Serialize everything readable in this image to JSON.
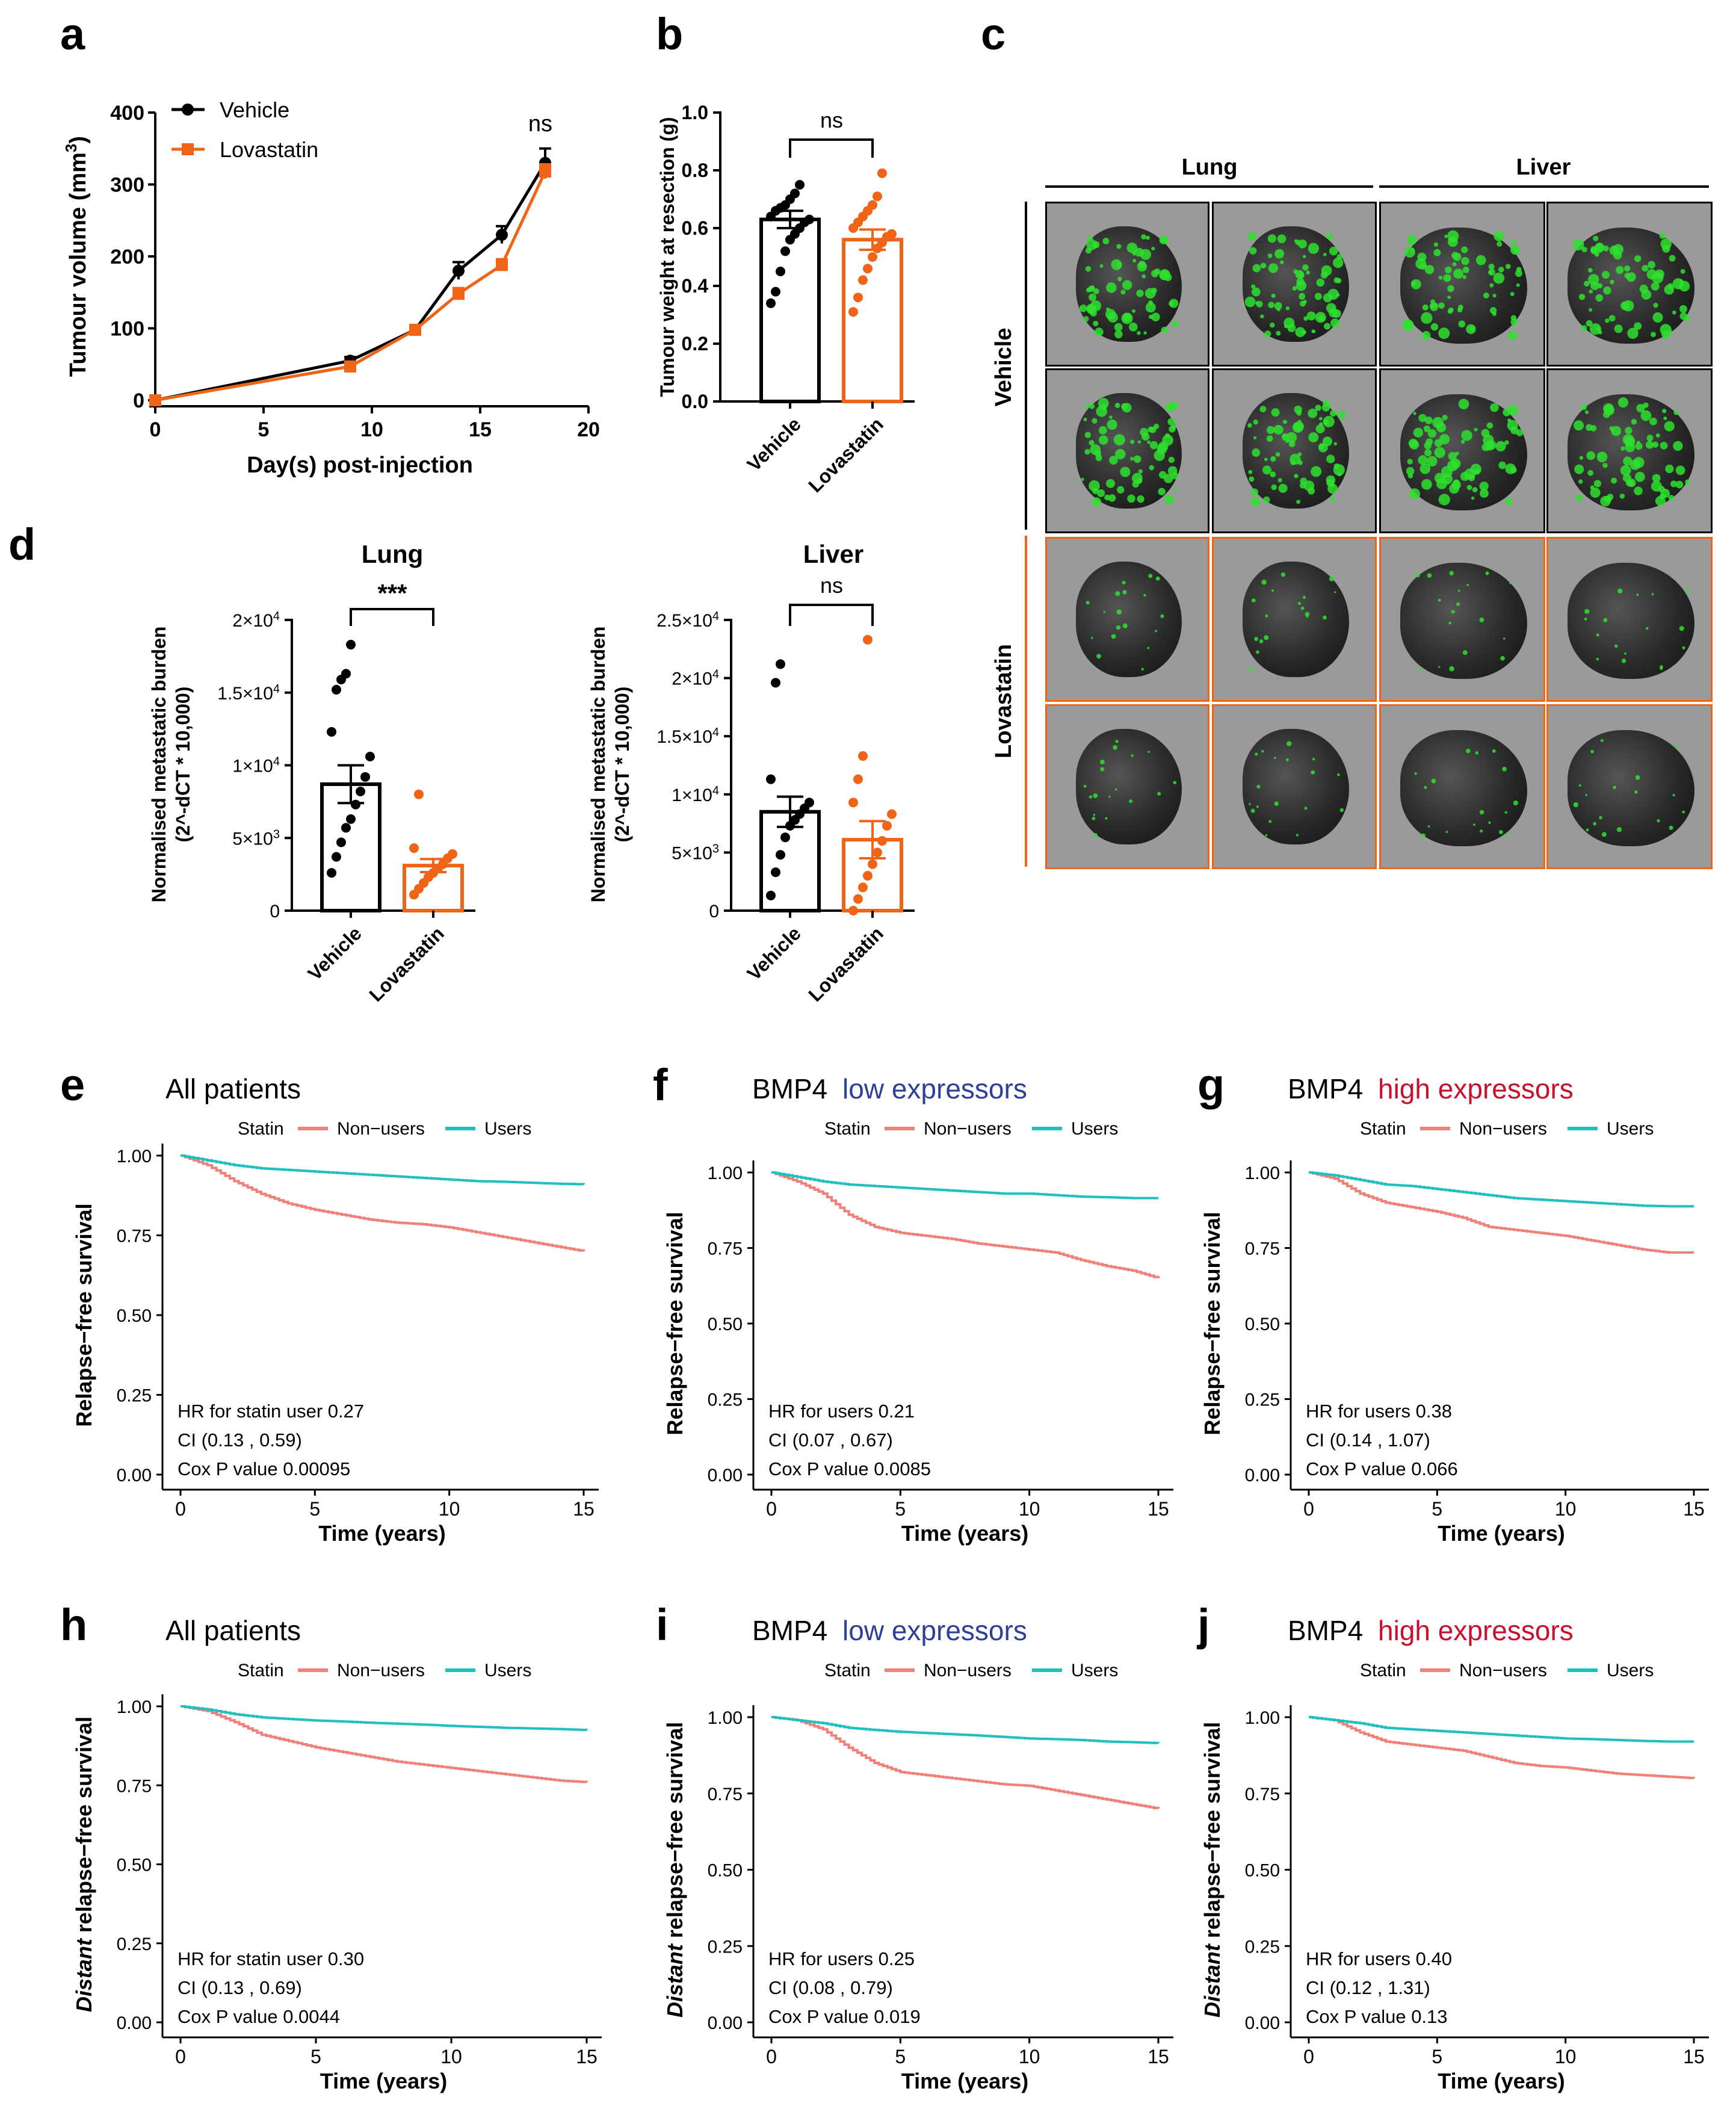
{
  "panel_letters": [
    "a",
    "b",
    "c",
    "d",
    "e",
    "f",
    "g",
    "h",
    "i",
    "j"
  ],
  "colors": {
    "vehicle": "#000000",
    "lovastatin": "#f06418",
    "non_users": "#f08078",
    "users": "#20c0c0",
    "low_blue": "#2e3f9a",
    "high_red": "#c8102e",
    "fluor": "#2ee02e"
  },
  "panel_c": {
    "columns": [
      "Lung",
      "Liver"
    ],
    "rows": [
      "Vehicle",
      "Lovastatin"
    ]
  },
  "chart_data": [
    {
      "id": "a",
      "type": "line",
      "title": "",
      "xlabel": "Day(s) post-injection",
      "ylabel": "Tumour volume (mm³)",
      "ylabel_text": "Tumour volume (mm",
      "ylabel_sup": "3",
      "ylabel_close": ")",
      "xlim": [
        0,
        20
      ],
      "ylim": [
        0,
        400
      ],
      "xticks": [
        "0",
        "5",
        "10",
        "15",
        "20"
      ],
      "yticks": [
        "0",
        "100",
        "200",
        "300",
        "400"
      ],
      "annotation": "ns",
      "series": [
        {
          "name": "Vehicle",
          "x": [
            0,
            9,
            12,
            14,
            16,
            18
          ],
          "y": [
            0,
            55,
            98,
            180,
            230,
            330
          ],
          "err": [
            0,
            5,
            5,
            12,
            12,
            20
          ]
        },
        {
          "name": "Lovastatin",
          "x": [
            0,
            9,
            12,
            14,
            16,
            18
          ],
          "y": [
            0,
            47,
            98,
            148,
            188,
            318
          ],
          "err": [
            0,
            4,
            5,
            8,
            8,
            10
          ]
        }
      ]
    },
    {
      "id": "b",
      "type": "bar",
      "xlabel": "",
      "ylabel": "Tumour weight at resection (g)",
      "categories": [
        "Vehicle",
        "Lovastatin"
      ],
      "values": [
        0.63,
        0.56
      ],
      "sem": [
        0.03,
        0.035
      ],
      "ylim": [
        0,
        1.0
      ],
      "yticks": [
        "0.0",
        "0.2",
        "0.4",
        "0.6",
        "0.8",
        "1.0"
      ],
      "annotation": "ns",
      "points": [
        [
          0.34,
          0.38,
          0.45,
          0.52,
          0.56,
          0.58,
          0.6,
          0.62,
          0.63,
          0.64,
          0.66,
          0.67,
          0.68,
          0.7,
          0.72,
          0.75
        ],
        [
          0.31,
          0.36,
          0.42,
          0.46,
          0.5,
          0.53,
          0.55,
          0.57,
          0.58,
          0.6,
          0.62,
          0.64,
          0.66,
          0.68,
          0.71,
          0.79
        ]
      ]
    },
    {
      "id": "d-lung",
      "type": "bar",
      "title": "Lung",
      "ylabel_line1": "Normalised metastatic burden",
      "ylabel_line2": "(2^-dCT * 10,000)",
      "categories": [
        "Vehicle",
        "Lovastatin"
      ],
      "values": [
        8700,
        3100
      ],
      "sem": [
        1300,
        450
      ],
      "ylim": [
        0,
        20000
      ],
      "yticks": [
        {
          "value": 0,
          "base": "0",
          "exp": ""
        },
        {
          "value": 5000,
          "base": "5×10",
          "exp": "3"
        },
        {
          "value": 10000,
          "base": "1×10",
          "exp": "4"
        },
        {
          "value": 15000,
          "base": "1.5×10",
          "exp": "4"
        },
        {
          "value": 20000,
          "base": "2×10",
          "exp": "4"
        }
      ],
      "annotation": "***",
      "points": [
        [
          2600,
          3700,
          4700,
          5700,
          6300,
          7300,
          8200,
          9200,
          10600,
          12300,
          15200,
          15900,
          16300,
          18300
        ],
        [
          1100,
          1500,
          1900,
          2300,
          2600,
          2900,
          3200,
          3600,
          3900,
          4300,
          8000
        ]
      ]
    },
    {
      "id": "d-liver",
      "type": "bar",
      "title": "Liver",
      "ylabel_line1": "Normalised metastatic burden",
      "ylabel_line2": "(2^-dCT * 10,000)",
      "categories": [
        "Vehicle",
        "Lovastatin"
      ],
      "values": [
        8500,
        6100
      ],
      "sem": [
        1300,
        1600
      ],
      "ylim": [
        0,
        25000
      ],
      "yticks": [
        {
          "value": 0,
          "base": "0",
          "exp": ""
        },
        {
          "value": 5000,
          "base": "5×10",
          "exp": "3"
        },
        {
          "value": 10000,
          "base": "1×10",
          "exp": "4"
        },
        {
          "value": 15000,
          "base": "1.5×10",
          "exp": "4"
        },
        {
          "value": 20000,
          "base": "2×10",
          "exp": "4"
        },
        {
          "value": 25000,
          "base": "2.5×10",
          "exp": "4"
        }
      ],
      "annotation": "ns",
      "points": [
        [
          1300,
          3300,
          4800,
          6300,
          7300,
          7800,
          8300,
          8800,
          9300,
          11300,
          19600,
          21200
        ],
        [
          0,
          1000,
          2000,
          3000,
          4000,
          5000,
          6000,
          7300,
          8300,
          9300,
          11300,
          13300,
          23300
        ]
      ]
    },
    {
      "id": "e",
      "type": "line",
      "kind": "km",
      "title": "All patients",
      "title_pre": "",
      "title_post": "",
      "xlabel": "Time (years)",
      "ylabel_italic": "",
      "ylabel": "Relapse−free survival",
      "legend_title": "Statin",
      "legend": [
        "Non−users",
        "Users"
      ],
      "xlim": [
        0,
        15
      ],
      "ylim": [
        0,
        1
      ],
      "xticks": [
        "0",
        "5",
        "10",
        "15"
      ],
      "yticks": [
        "0.00",
        "0.25",
        "0.50",
        "0.75",
        "1.00"
      ],
      "annotations": [
        "HR for statin user 0.27",
        "CI (0.13 , 0.59)",
        "Cox P value 0.00095"
      ],
      "series": [
        {
          "name": "Non−users",
          "x": [
            0,
            1,
            2,
            3,
            4,
            5,
            6,
            7,
            8,
            9,
            10,
            11,
            12,
            13,
            14,
            15
          ],
          "y": [
            1,
            0.97,
            0.92,
            0.88,
            0.85,
            0.83,
            0.815,
            0.8,
            0.79,
            0.785,
            0.775,
            0.76,
            0.745,
            0.73,
            0.715,
            0.7
          ]
        },
        {
          "name": "Users",
          "x": [
            0,
            1,
            2,
            3,
            4,
            5,
            6,
            7,
            8,
            9,
            10,
            11,
            12,
            13,
            14,
            15
          ],
          "y": [
            1,
            0.985,
            0.97,
            0.96,
            0.955,
            0.95,
            0.945,
            0.94,
            0.935,
            0.93,
            0.925,
            0.92,
            0.918,
            0.915,
            0.912,
            0.91
          ]
        }
      ]
    },
    {
      "id": "f",
      "type": "line",
      "kind": "km",
      "title": "",
      "title_pre": "BMP4",
      "title_post": "low expressors",
      "title_post_color": "low",
      "xlabel": "Time (years)",
      "ylabel_italic": "",
      "ylabel": "Relapse−free survival",
      "legend_title": "Statin",
      "legend": [
        "Non−users",
        "Users"
      ],
      "xlim": [
        0,
        15
      ],
      "ylim": [
        0,
        1
      ],
      "xticks": [
        "0",
        "5",
        "10",
        "15"
      ],
      "yticks": [
        "0.00",
        "0.25",
        "0.50",
        "0.75",
        "1.00"
      ],
      "annotations": [
        "HR for users 0.21",
        "CI (0.07 , 0.67)",
        "Cox P value 0.0085"
      ],
      "series": [
        {
          "name": "Non−users",
          "x": [
            0,
            1,
            2,
            3,
            4,
            5,
            6,
            7,
            8,
            9,
            10,
            11,
            12,
            13,
            14,
            15
          ],
          "y": [
            1,
            0.97,
            0.93,
            0.86,
            0.82,
            0.8,
            0.79,
            0.78,
            0.765,
            0.755,
            0.745,
            0.735,
            0.71,
            0.69,
            0.675,
            0.65
          ]
        },
        {
          "name": "Users",
          "x": [
            0,
            1,
            2,
            3,
            4,
            5,
            6,
            7,
            8,
            9,
            10,
            11,
            12,
            13,
            14,
            15
          ],
          "y": [
            1,
            0.985,
            0.97,
            0.96,
            0.955,
            0.95,
            0.945,
            0.94,
            0.935,
            0.93,
            0.93,
            0.925,
            0.92,
            0.918,
            0.915,
            0.915
          ]
        }
      ]
    },
    {
      "id": "g",
      "type": "line",
      "kind": "km",
      "title": "",
      "title_pre": "BMP4",
      "title_post": "high expressors",
      "title_post_color": "high",
      "xlabel": "Time (years)",
      "ylabel_italic": "",
      "ylabel": "Relapse−free survival",
      "legend_title": "Statin",
      "legend": [
        "Non−users",
        "Users"
      ],
      "xlim": [
        0,
        15
      ],
      "ylim": [
        0,
        1
      ],
      "xticks": [
        "0",
        "5",
        "10",
        "15"
      ],
      "yticks": [
        "0.00",
        "0.25",
        "0.50",
        "0.75",
        "1.00"
      ],
      "annotations": [
        "HR for users 0.38",
        "CI (0.14 , 1.07)",
        "Cox P value 0.066"
      ],
      "series": [
        {
          "name": "Non−users",
          "x": [
            0,
            1,
            2,
            3,
            4,
            5,
            6,
            7,
            8,
            9,
            10,
            11,
            12,
            13,
            14,
            15
          ],
          "y": [
            1,
            0.98,
            0.93,
            0.9,
            0.885,
            0.87,
            0.85,
            0.82,
            0.81,
            0.8,
            0.79,
            0.775,
            0.76,
            0.745,
            0.735,
            0.735
          ]
        },
        {
          "name": "Users",
          "x": [
            0,
            1,
            2,
            3,
            4,
            5,
            6,
            7,
            8,
            9,
            10,
            11,
            12,
            13,
            14,
            15
          ],
          "y": [
            1,
            0.99,
            0.975,
            0.96,
            0.955,
            0.945,
            0.935,
            0.925,
            0.915,
            0.91,
            0.905,
            0.9,
            0.895,
            0.89,
            0.888,
            0.888
          ]
        }
      ]
    },
    {
      "id": "h",
      "type": "line",
      "kind": "km",
      "title": "All patients",
      "title_pre": "",
      "title_post": "",
      "xlabel": "Time (years)",
      "ylabel_italic": "Distant",
      "ylabel": " relapse−free survival",
      "legend_title": "Statin",
      "legend": [
        "Non−users",
        "Users"
      ],
      "xlim": [
        0,
        15
      ],
      "ylim": [
        0,
        1
      ],
      "xticks": [
        "0",
        "5",
        "10",
        "15"
      ],
      "yticks": [
        "0.00",
        "0.25",
        "0.50",
        "0.75",
        "1.00"
      ],
      "annotations": [
        "HR for statin user 0.30",
        "CI (0.13 , 0.69)",
        "Cox P value 0.0044"
      ],
      "series": [
        {
          "name": "Non−users",
          "x": [
            0,
            1,
            2,
            3,
            4,
            5,
            6,
            7,
            8,
            9,
            10,
            11,
            12,
            13,
            14,
            15
          ],
          "y": [
            1,
            0.985,
            0.95,
            0.91,
            0.89,
            0.87,
            0.855,
            0.84,
            0.825,
            0.815,
            0.805,
            0.795,
            0.785,
            0.775,
            0.765,
            0.76
          ]
        },
        {
          "name": "Users",
          "x": [
            0,
            1,
            2,
            3,
            4,
            5,
            6,
            7,
            8,
            9,
            10,
            11,
            12,
            13,
            14,
            15
          ],
          "y": [
            1,
            0.99,
            0.975,
            0.965,
            0.96,
            0.955,
            0.952,
            0.948,
            0.945,
            0.942,
            0.938,
            0.935,
            0.932,
            0.93,
            0.928,
            0.925
          ]
        }
      ]
    },
    {
      "id": "i",
      "type": "line",
      "kind": "km",
      "title": "",
      "title_pre": "BMP4",
      "title_post": "low expressors",
      "title_post_color": "low",
      "xlabel": "Time (years)",
      "ylabel_italic": "Distant",
      "ylabel": " relapse−free survival",
      "legend_title": "Statin",
      "legend": [
        "Non−users",
        "Users"
      ],
      "xlim": [
        0,
        15
      ],
      "ylim": [
        0,
        1
      ],
      "xticks": [
        "0",
        "5",
        "10",
        "15"
      ],
      "yticks": [
        "0.00",
        "0.25",
        "0.50",
        "0.75",
        "1.00"
      ],
      "annotations": [
        "HR for users 0.25",
        "CI (0.08 , 0.79)",
        "Cox P value 0.019"
      ],
      "series": [
        {
          "name": "Non−users",
          "x": [
            0,
            1,
            2,
            3,
            4,
            5,
            6,
            7,
            8,
            9,
            10,
            11,
            12,
            13,
            14,
            15
          ],
          "y": [
            1,
            0.99,
            0.96,
            0.9,
            0.85,
            0.82,
            0.81,
            0.8,
            0.79,
            0.78,
            0.775,
            0.76,
            0.745,
            0.73,
            0.715,
            0.7
          ]
        },
        {
          "name": "Users",
          "x": [
            0,
            1,
            2,
            3,
            4,
            5,
            6,
            7,
            8,
            9,
            10,
            11,
            12,
            13,
            14,
            15
          ],
          "y": [
            1,
            0.99,
            0.98,
            0.965,
            0.958,
            0.952,
            0.948,
            0.944,
            0.94,
            0.935,
            0.93,
            0.928,
            0.925,
            0.92,
            0.918,
            0.915
          ]
        }
      ]
    },
    {
      "id": "j",
      "type": "line",
      "kind": "km",
      "title": "",
      "title_pre": "BMP4",
      "title_post": "high expressors",
      "title_post_color": "high",
      "xlabel": "Time (years)",
      "ylabel_italic": "Distant",
      "ylabel": " relapse−free survival",
      "legend_title": "Statin",
      "legend": [
        "Non−users",
        "Users"
      ],
      "xlim": [
        0,
        15
      ],
      "ylim": [
        0,
        1
      ],
      "xticks": [
        "0",
        "5",
        "10",
        "15"
      ],
      "yticks": [
        "0.00",
        "0.25",
        "0.50",
        "0.75",
        "1.00"
      ],
      "annotations": [
        "HR for users 0.40",
        "CI (0.12 , 1.31)",
        "Cox P value 0.13"
      ],
      "series": [
        {
          "name": "Non−users",
          "x": [
            0,
            1,
            2,
            3,
            4,
            5,
            6,
            7,
            8,
            9,
            10,
            11,
            12,
            13,
            14,
            15
          ],
          "y": [
            1,
            0.99,
            0.95,
            0.92,
            0.91,
            0.9,
            0.89,
            0.87,
            0.85,
            0.84,
            0.835,
            0.825,
            0.815,
            0.81,
            0.805,
            0.8
          ]
        },
        {
          "name": "Users",
          "x": [
            0,
            1,
            2,
            3,
            4,
            5,
            6,
            7,
            8,
            9,
            10,
            11,
            12,
            13,
            14,
            15
          ],
          "y": [
            1,
            0.99,
            0.98,
            0.965,
            0.96,
            0.955,
            0.95,
            0.945,
            0.94,
            0.935,
            0.93,
            0.928,
            0.925,
            0.922,
            0.92,
            0.92
          ]
        }
      ]
    }
  ]
}
